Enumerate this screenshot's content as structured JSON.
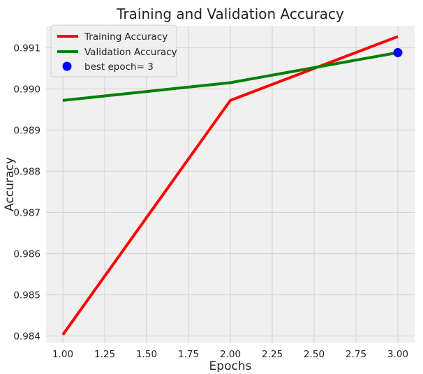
{
  "chart_data": {
    "type": "line",
    "title": "Training and Validation Accuracy",
    "xlabel": "Epochs",
    "ylabel": "Accuracy",
    "x": [
      1,
      2,
      3
    ],
    "xlim": [
      0.9,
      3.1
    ],
    "ylim": [
      0.98384,
      0.99153
    ],
    "xticks": [
      "1.00",
      "1.25",
      "1.50",
      "1.75",
      "2.00",
      "2.25",
      "2.50",
      "2.75",
      "3.00"
    ],
    "yticks": [
      "0.984",
      "0.985",
      "0.986",
      "0.987",
      "0.988",
      "0.989",
      "0.990",
      "0.991"
    ],
    "grid": true,
    "legend_position": "top-left",
    "series": [
      {
        "name": "Training Accuracy",
        "color": "#ff0000",
        "values": [
          0.98403,
          0.98972,
          0.99127
        ]
      },
      {
        "name": "Validation Accuracy",
        "color": "#008000",
        "values": [
          0.98972,
          0.99015,
          0.99088
        ]
      }
    ],
    "best_point": {
      "label": "best epoch= 3",
      "x": 3,
      "y": 0.99088,
      "color": "#0000ff"
    }
  }
}
